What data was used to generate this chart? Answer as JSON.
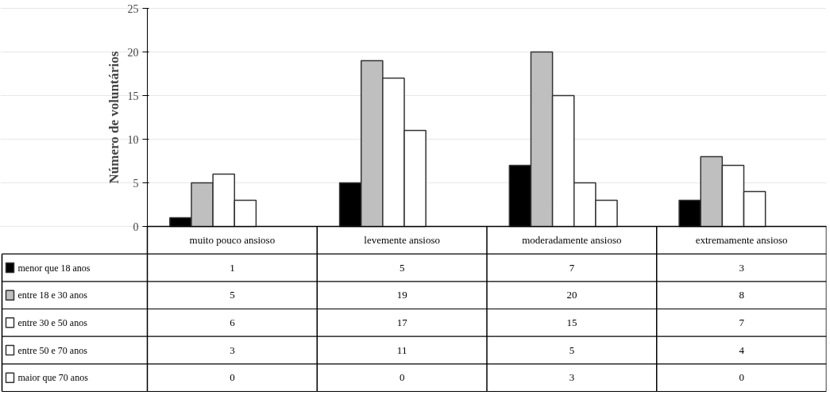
{
  "chart_data": {
    "type": "bar",
    "ylabel": "Número de voluntários",
    "categories": [
      "muito pouco ansioso",
      "levemente ansioso",
      "moderadamente ansioso",
      "extremamente ansioso"
    ],
    "series": [
      {
        "name": "menor que 18 anos",
        "color": "#000000",
        "values": [
          1,
          5,
          7,
          3
        ]
      },
      {
        "name": "entre 18 e 30 anos",
        "color": "#bfbfbf",
        "values": [
          5,
          19,
          20,
          8
        ]
      },
      {
        "name": "entre 30 e 50 anos",
        "color": "#ffffff",
        "values": [
          6,
          17,
          15,
          7
        ]
      },
      {
        "name": "entre 50 e 70 anos",
        "color": "#ffffff",
        "values": [
          3,
          11,
          5,
          4
        ]
      },
      {
        "name": "maior que 70 anos",
        "color": "#ffffff",
        "values": [
          0,
          0,
          3,
          0
        ]
      }
    ],
    "ylim": [
      0,
      25
    ],
    "yticks": [
      0,
      5,
      10,
      15,
      20,
      25
    ],
    "grid": "y",
    "legend": "bottom",
    "data_labels": true
  }
}
